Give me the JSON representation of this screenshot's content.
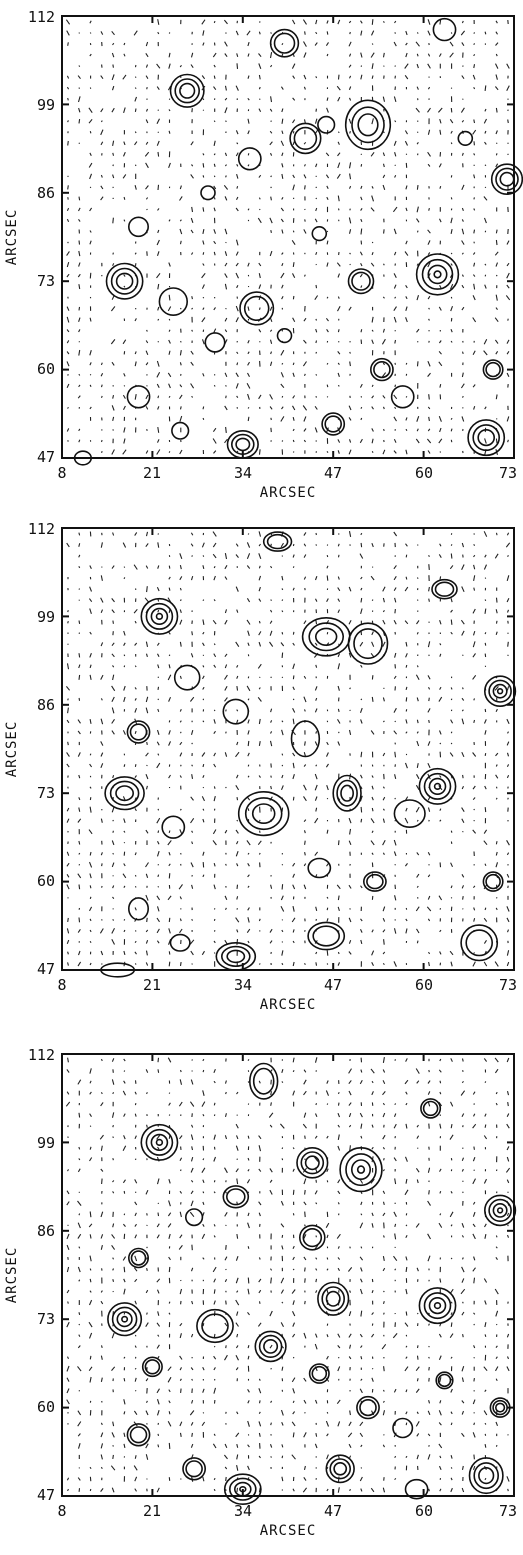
{
  "panels": [
    {
      "id": "panel-1",
      "xlabel": "ARCSEC",
      "ylabel": "ARCSEC",
      "xticks": [
        "8",
        "21",
        "34",
        "47",
        "60",
        "73"
      ],
      "yticks": [
        "112",
        "99",
        "86",
        "73",
        "60",
        "47"
      ],
      "xlim": [
        8,
        73
      ],
      "ylim": [
        47,
        112
      ]
    },
    {
      "id": "panel-2",
      "xlabel": "ARCSEC",
      "ylabel": "ARCSEC",
      "xticks": [
        "8",
        "21",
        "34",
        "47",
        "60",
        "73"
      ],
      "yticks": [
        "112",
        "99",
        "86",
        "73",
        "60",
        "47"
      ],
      "xlim": [
        8,
        73
      ],
      "ylim": [
        47,
        112
      ]
    },
    {
      "id": "panel-3",
      "xlabel": "ARCSEC",
      "ylabel": "ARCSEC",
      "xticks": [
        "8",
        "21",
        "34",
        "47",
        "60",
        "73"
      ],
      "yticks": [
        "112",
        "99",
        "86",
        "73",
        "60",
        "47"
      ],
      "xlim": [
        8,
        73
      ],
      "ylim": [
        47,
        112
      ]
    }
  ]
}
